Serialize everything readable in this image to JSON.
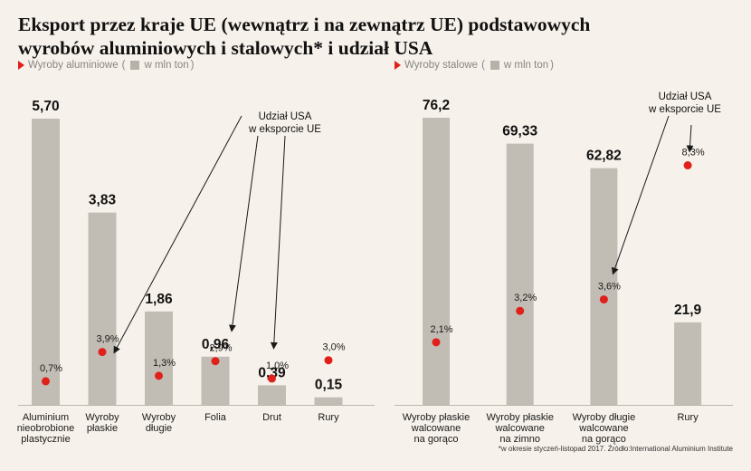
{
  "title": {
    "line1": "Eksport przez kraje UE (wewnątrz i na zewnątrz UE) podstawowych",
    "line2": "wyrobów aluminiowych i stalowych* i udział USA"
  },
  "colors": {
    "bar": "#c2bdb4",
    "dot": "#e0201b",
    "background": "#f6f1ea",
    "axis": "#bdb8ae"
  },
  "footnote": "*w okresie styczeń-listopad 2017. Źródło:International Aluminium Institute",
  "chart_data": [
    {
      "type": "bar",
      "legend": {
        "series_label": "Wyroby aluminiowe",
        "unit_open": "(",
        "unit_label": "w mln ton",
        "unit_close": ")"
      },
      "categories": [
        "Aluminium nieobrobione plastycznie",
        "Wyroby płaskie",
        "Wyroby długie",
        "Folia",
        "Drut",
        "Rury"
      ],
      "category_lines": [
        [
          "Aluminium",
          "nieobrobione",
          "plastycznie"
        ],
        [
          "Wyroby",
          "płaskie"
        ],
        [
          "Wyroby",
          "długie"
        ],
        [
          "Folia"
        ],
        [
          "Drut"
        ],
        [
          "Rury"
        ]
      ],
      "values": [
        5.7,
        3.83,
        1.86,
        0.96,
        0.39,
        0.15
      ],
      "value_labels": [
        "5,70",
        "3,83",
        "1,86",
        "0,96",
        "0,39",
        "0,15"
      ],
      "us_share_pct": [
        0.7,
        3.9,
        1.3,
        2.9,
        1.0,
        3.0
      ],
      "us_share_labels": [
        "0,7%",
        "3,9%",
        "1,3%",
        "2,9%",
        "1,0%",
        "3,0%"
      ],
      "annotation": {
        "lines": [
          "Udział USA",
          "w eksporcie UE"
        ]
      }
    },
    {
      "type": "bar",
      "legend": {
        "series_label": "Wyroby stalowe",
        "unit_open": "(",
        "unit_label": "w mln ton",
        "unit_close": ")"
      },
      "categories": [
        "Wyroby płaskie walcowane na gorąco",
        "Wyroby płaskie walcowane na zimno",
        "Wyroby długie walcowane na gorąco",
        "Rury"
      ],
      "category_lines": [
        [
          "Wyroby płaskie",
          "walcowane",
          "na gorąco"
        ],
        [
          "Wyroby płaskie",
          "walcowane",
          "na zimno"
        ],
        [
          "Wyroby długie",
          "walcowane",
          "na gorąco"
        ],
        [
          "Rury"
        ]
      ],
      "values": [
        76.2,
        69.33,
        62.82,
        21.9
      ],
      "value_labels": [
        "76,2",
        "69,33",
        "62,82",
        "21,9"
      ],
      "us_share_pct": [
        2.1,
        3.2,
        3.6,
        8.3
      ],
      "us_share_labels": [
        "2,1%",
        "3,2%",
        "3,6%",
        "8,3%"
      ],
      "annotation": {
        "lines": [
          "Udział USA",
          "w eksporcie UE"
        ]
      }
    }
  ]
}
